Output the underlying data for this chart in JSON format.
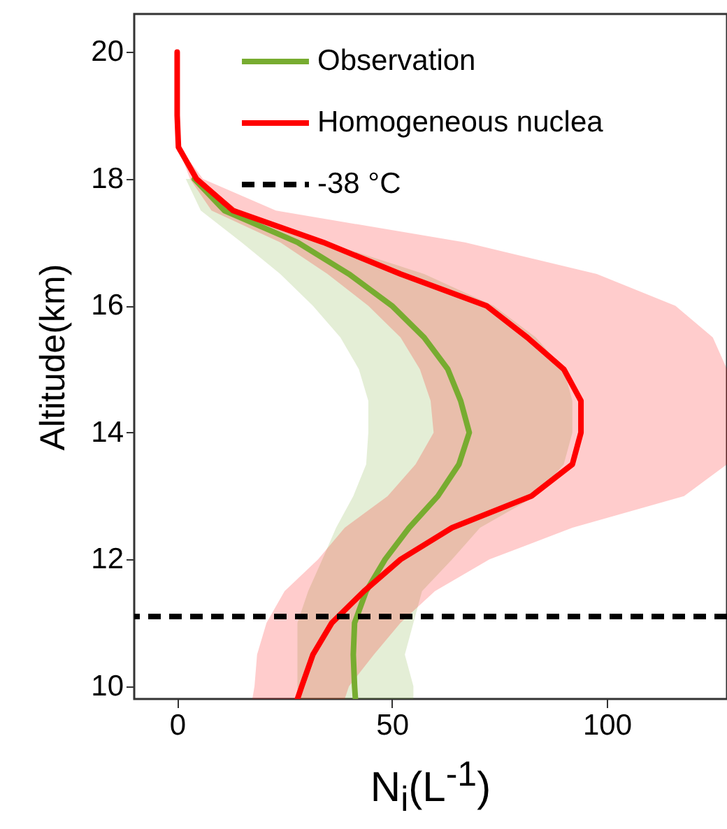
{
  "chart_data": {
    "type": "line",
    "orientation": "horizontal",
    "xlabel": "N$_{i}$(L$^{-1}$)",
    "ylabel": "Altitude(km)",
    "x": [
      20,
      19,
      18.5,
      18,
      17.5,
      17,
      16.5,
      16,
      15.5,
      15,
      14.5,
      14,
      13.5,
      13,
      12.5,
      12,
      11.5,
      11,
      10.5,
      10,
      9.8
    ],
    "xlim": [
      -10,
      128
    ],
    "xticks": [
      0,
      50,
      100
    ],
    "ylim": [
      9.8,
      20.6
    ],
    "yticks": [
      10,
      12,
      14,
      16,
      18,
      20
    ],
    "series": [
      {
        "name": "Observation",
        "color": "#77ac30",
        "values": [
          null,
          null,
          null,
          4,
          11,
          28,
          40,
          50,
          57.5,
          63,
          66,
          68,
          65.6,
          60.7,
          54,
          48.4,
          44,
          41.3,
          41,
          41.3,
          41.5
        ],
        "lower": [
          null,
          null,
          null,
          2,
          5.5,
          15,
          24,
          31.6,
          38,
          42.3,
          44.5,
          44.5,
          44,
          41,
          37,
          33.8,
          30.5,
          28,
          28,
          28,
          28
        ],
        "upper": [
          null,
          null,
          null,
          5,
          14.3,
          34.7,
          57.5,
          73.7,
          83.5,
          90,
          92,
          92,
          90,
          83.5,
          70.5,
          64,
          57,
          55,
          53,
          55,
          55
        ]
      },
      {
        "name": "Homogeneous nuclea",
        "color": "#ff0000",
        "values": [
          0,
          0,
          0.3,
          4.5,
          13,
          34,
          52,
          72,
          81.5,
          90,
          94,
          94,
          92,
          82.5,
          64,
          52,
          43.5,
          36,
          31.6,
          29,
          28
        ],
        "lower": [
          0,
          0,
          0.2,
          3,
          8,
          24,
          35,
          44.5,
          52,
          56.5,
          59,
          59.7,
          55.5,
          49,
          39,
          32.8,
          25,
          20.8,
          18.6,
          18,
          17.5
        ],
        "upper": [
          0,
          0,
          0.5,
          6,
          23,
          67,
          97.7,
          116,
          124.7,
          128,
          128,
          128,
          128,
          118,
          92,
          72.7,
          60,
          52,
          45.8,
          40,
          39
        ]
      }
    ],
    "ref_lines": [
      {
        "axis": "y",
        "value": 11.1,
        "label": "-38 °C",
        "color": "#000000",
        "line_style": "dashed"
      }
    ],
    "legend": "top"
  }
}
